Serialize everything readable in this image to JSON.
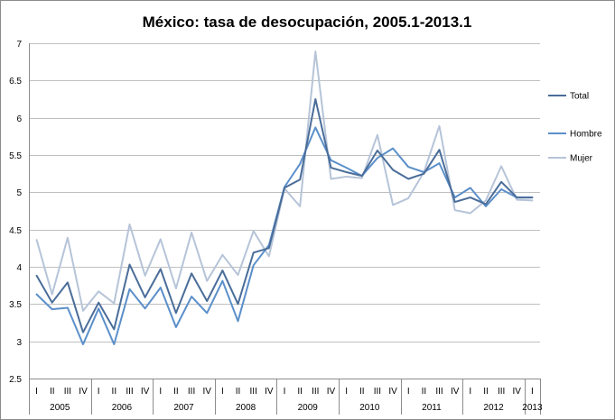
{
  "chart_data": {
    "type": "line",
    "title": "México: tasa de desocupación, 2005.1-2013.1",
    "xlabel": "",
    "ylabel": "",
    "ylim": [
      2.5,
      7
    ],
    "yticks": [
      "2.5",
      "3",
      "3.5",
      "4",
      "4.5",
      "5",
      "5.5",
      "6",
      "6.5",
      "7"
    ],
    "grid": true,
    "legend_position": "right",
    "quarters": [
      "I",
      "II",
      "III",
      "IV",
      "I",
      "II",
      "III",
      "IV",
      "I",
      "II",
      "III",
      "IV",
      "I",
      "II",
      "III",
      "IV",
      "I",
      "II",
      "III",
      "IV",
      "I",
      "II",
      "III",
      "IV",
      "I",
      "II",
      "III",
      "IV",
      "I",
      "II",
      "III",
      "IV",
      "I"
    ],
    "years": [
      "2005",
      "2006",
      "2007",
      "2008",
      "2009",
      "2010",
      "2011",
      "2012",
      "2013"
    ],
    "series": [
      {
        "name": "Total",
        "color": "#4a6d99",
        "values": [
          3.88,
          3.52,
          3.79,
          3.12,
          3.52,
          3.16,
          4.03,
          3.59,
          3.97,
          3.38,
          3.91,
          3.54,
          3.95,
          3.5,
          4.19,
          4.25,
          5.06,
          5.17,
          6.25,
          5.33,
          5.27,
          5.22,
          5.56,
          5.3,
          5.18,
          5.25,
          5.57,
          4.87,
          4.93,
          4.84,
          5.14,
          4.93,
          4.93
        ]
      },
      {
        "name": "Hombre",
        "color": "#5b8fc9",
        "values": [
          3.63,
          3.43,
          3.45,
          2.96,
          3.44,
          2.96,
          3.7,
          3.44,
          3.72,
          3.19,
          3.6,
          3.38,
          3.81,
          3.27,
          4.02,
          4.29,
          5.07,
          5.38,
          5.87,
          5.43,
          5.33,
          5.22,
          5.46,
          5.59,
          5.34,
          5.27,
          5.39,
          4.93,
          5.06,
          4.81,
          5.04,
          4.93,
          4.93
        ]
      },
      {
        "name": "Mujer",
        "color": "#b6c4d8",
        "values": [
          4.36,
          3.63,
          4.39,
          3.41,
          3.67,
          3.51,
          4.57,
          3.88,
          4.37,
          3.71,
          4.46,
          3.81,
          4.16,
          3.89,
          4.48,
          4.14,
          5.05,
          4.81,
          6.89,
          5.18,
          5.21,
          5.19,
          5.77,
          4.83,
          4.92,
          5.27,
          5.89,
          4.76,
          4.72,
          4.89,
          5.35,
          4.9,
          4.89
        ]
      }
    ]
  }
}
